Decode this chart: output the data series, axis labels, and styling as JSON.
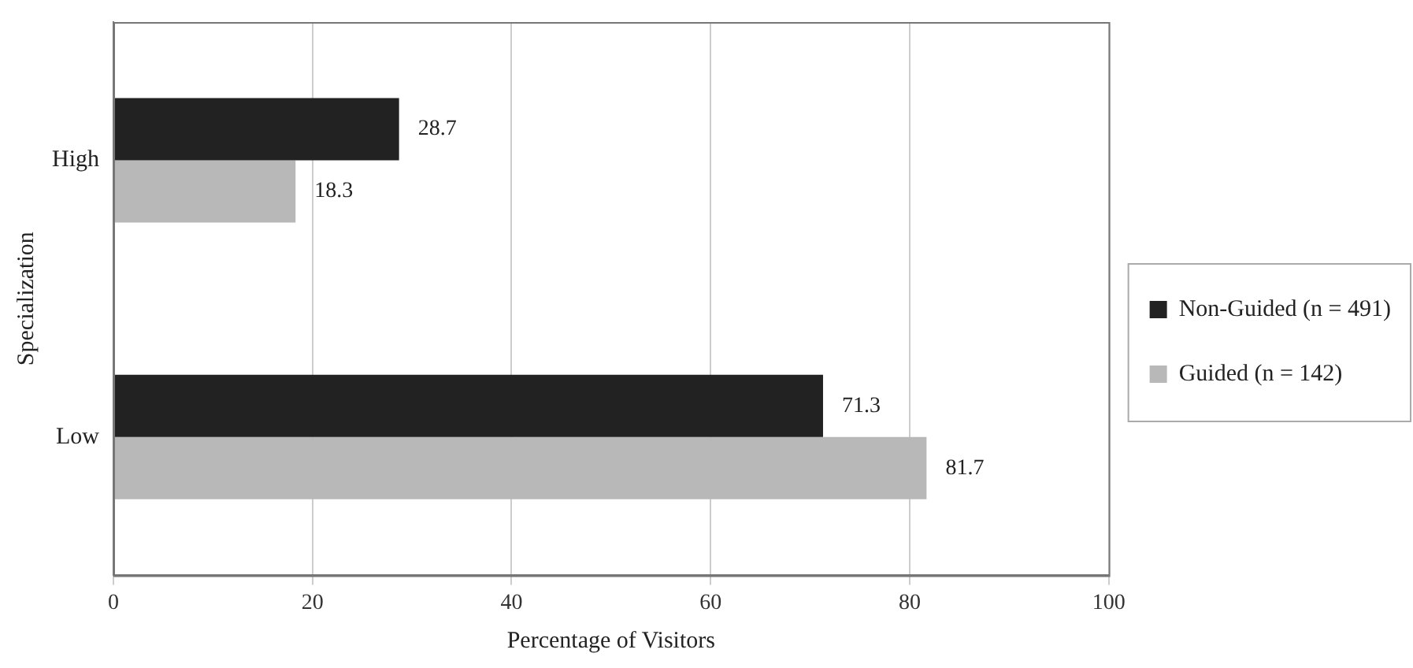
{
  "chart_data": {
    "type": "bar",
    "orientation": "horizontal",
    "xlabel": "Percentage of Visitors",
    "ylabel": "Specialization",
    "categories": [
      "High",
      "Low"
    ],
    "series": [
      {
        "name": "Non-Guided (n = 491)",
        "color": "#222222",
        "values": [
          28.7,
          71.3
        ]
      },
      {
        "name": "Guided (n = 142)",
        "color": "#b8b8b8",
        "values": [
          18.3,
          81.7
        ]
      }
    ],
    "xlim": [
      0,
      100
    ],
    "xticks": [
      0,
      20,
      40,
      60,
      80,
      100
    ],
    "grid": "x",
    "legend": "right",
    "data_labels": true
  }
}
